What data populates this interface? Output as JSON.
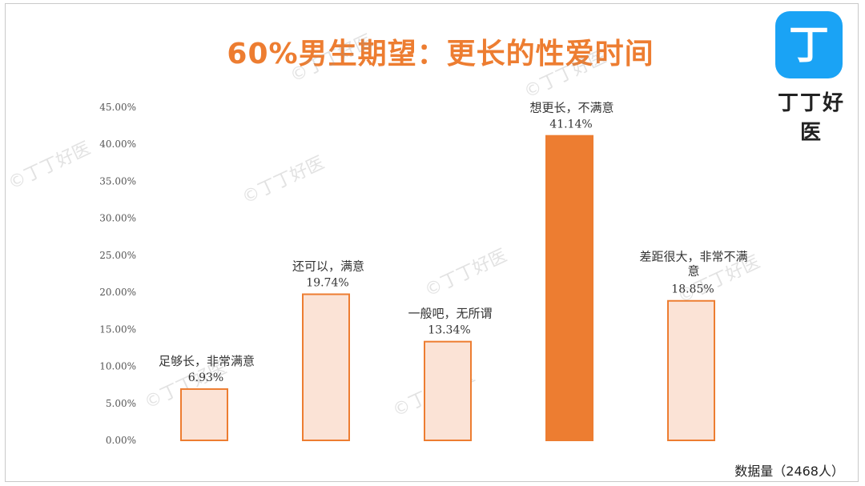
{
  "branding": {
    "logo_icon": "dingding-logo-icon",
    "logo_glyph": "丁",
    "logo_name": "丁丁好医",
    "watermark": "©丁丁好医",
    "logo_color": "#1aa3f5"
  },
  "footer": {
    "note": "数据量（2468人）"
  },
  "chart_data": {
    "type": "bar",
    "title": "60%男生期望：更长的性爱时间",
    "xlabel": "",
    "ylabel": "",
    "ylim": [
      0,
      45
    ],
    "yticks": [
      "0.00%",
      "5.00%",
      "10.00%",
      "15.00%",
      "20.00%",
      "25.00%",
      "30.00%",
      "35.00%",
      "40.00%",
      "45.00%"
    ],
    "grid": false,
    "categories": [
      "足够长，非常满意",
      "还可以，满意",
      "一般吧，无所谓",
      "想更长，不满意",
      "差距很大，非常不满意"
    ],
    "values": [
      6.93,
      19.74,
      13.34,
      41.14,
      18.85
    ],
    "value_labels": [
      "6.93%",
      "19.74%",
      "13.34%",
      "41.14%",
      "18.85%"
    ],
    "highlight_index": 3,
    "colors": {
      "accent": "#ed7d31",
      "bar_fill": "#fbe3d6",
      "bar_stroke": "#ed7d31",
      "highlight_fill": "#ed7d31"
    }
  }
}
